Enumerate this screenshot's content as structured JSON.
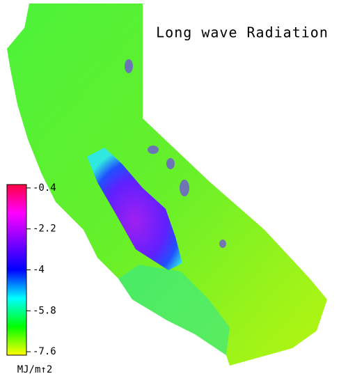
{
  "title": "Long wave Radiation",
  "colorbar": {
    "ticks": [
      -0.4,
      -2.2,
      -4.0,
      -5.8,
      -7.6
    ],
    "lim": [
      -7.75,
      -0.25
    ],
    "colors": [
      "#ffff00",
      "#00ff00",
      "#00ffff",
      "#0000ff",
      "#8000ff",
      "#ff00ff",
      "#ff0040"
    ],
    "unit": "MJ/m↑2"
  }
}
